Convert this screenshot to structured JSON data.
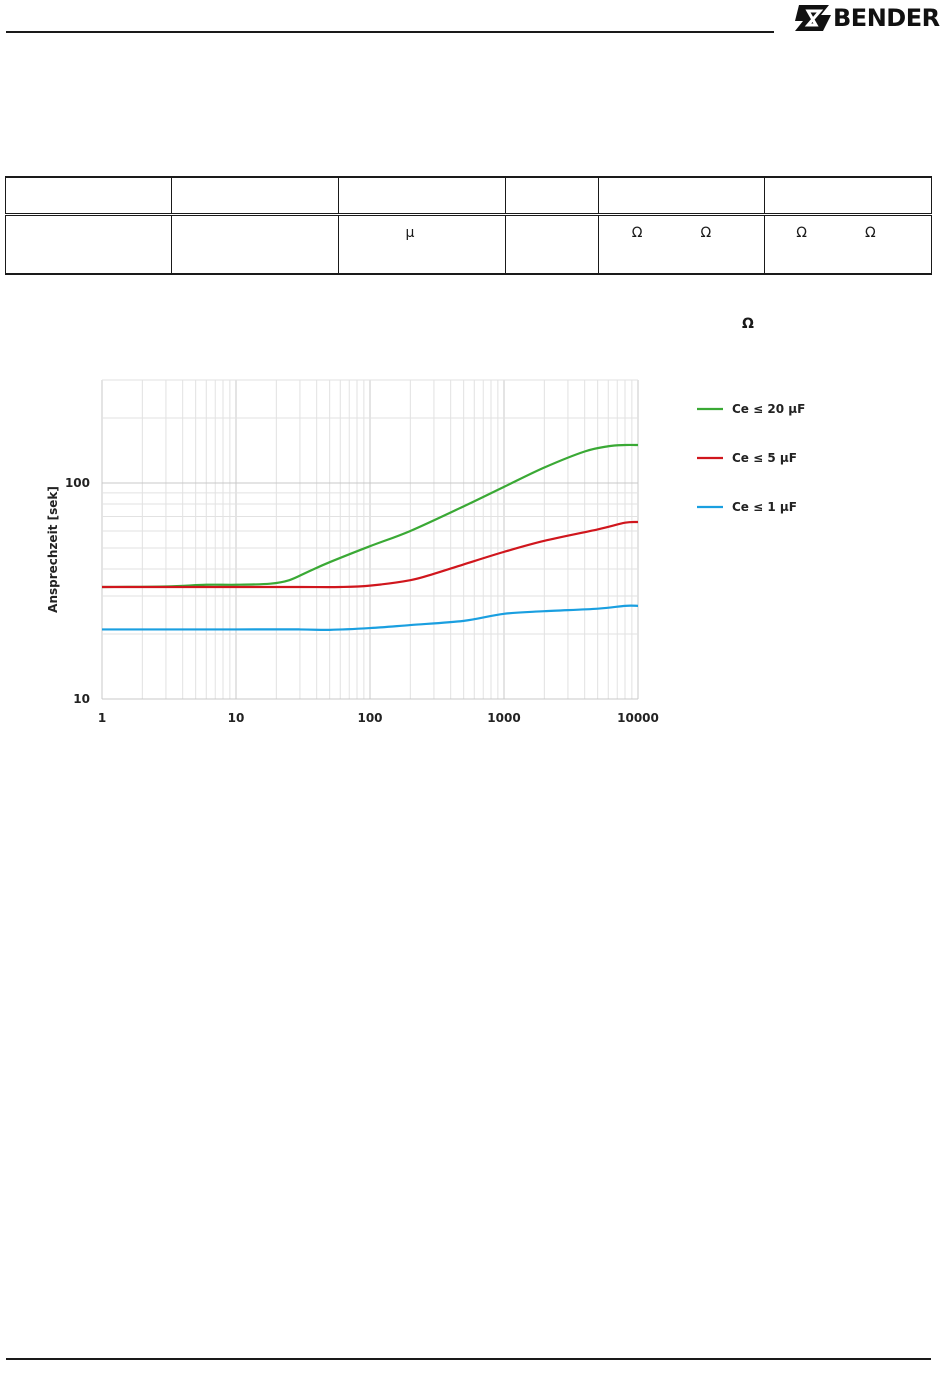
{
  "header": {
    "logo_text": "BENDER"
  },
  "table": {
    "row2": [
      "",
      "",
      "μ",
      "",
      [
        "Ω",
        "Ω"
      ],
      [
        "Ω",
        "Ω"
      ]
    ]
  },
  "ohm_label": "Ω",
  "colors": {
    "green": "#3aa935",
    "red": "#d0161d",
    "blue": "#1a9fe0"
  },
  "chart_data": {
    "type": "line",
    "xscale": "log",
    "yscale": "log",
    "xlim": [
      1,
      10000
    ],
    "ylim": [
      10,
      300
    ],
    "xticks": [
      "1",
      "10",
      "100",
      "1000",
      "10000"
    ],
    "yticks": [
      "10",
      "100"
    ],
    "ylabel": "Ansprechzeit [sek]",
    "xlabel": "",
    "grid": true,
    "legend_position": "right",
    "series": [
      {
        "name": "Ce ≤ 20 µF",
        "color": "#3aa935",
        "x": [
          1,
          3,
          6,
          10,
          18,
          25,
          35,
          50,
          100,
          200,
          500,
          1000,
          2000,
          4000,
          6000,
          8000,
          10000
        ],
        "y": [
          33,
          33.2,
          33.8,
          33.8,
          34.2,
          35.5,
          39,
          43,
          51,
          60,
          78,
          96,
          118,
          140,
          148,
          150,
          150
        ]
      },
      {
        "name": "Ce ≤ 5 µF",
        "color": "#d0161d",
        "x": [
          1,
          10,
          30,
          60,
          100,
          200,
          300,
          500,
          1000,
          2000,
          5000,
          8000,
          10000
        ],
        "y": [
          33,
          33,
          33,
          33,
          33.5,
          35.5,
          38,
          42,
          48,
          54,
          61,
          65.5,
          66
        ]
      },
      {
        "name": "Ce ≤ 1 µF",
        "color": "#1a9fe0",
        "x": [
          1,
          10,
          30,
          50,
          100,
          200,
          500,
          1000,
          2000,
          5000,
          8000,
          10000
        ],
        "y": [
          21,
          21,
          21,
          20.9,
          21.3,
          22,
          23,
          24.8,
          25.5,
          26.2,
          27,
          27
        ]
      }
    ]
  }
}
